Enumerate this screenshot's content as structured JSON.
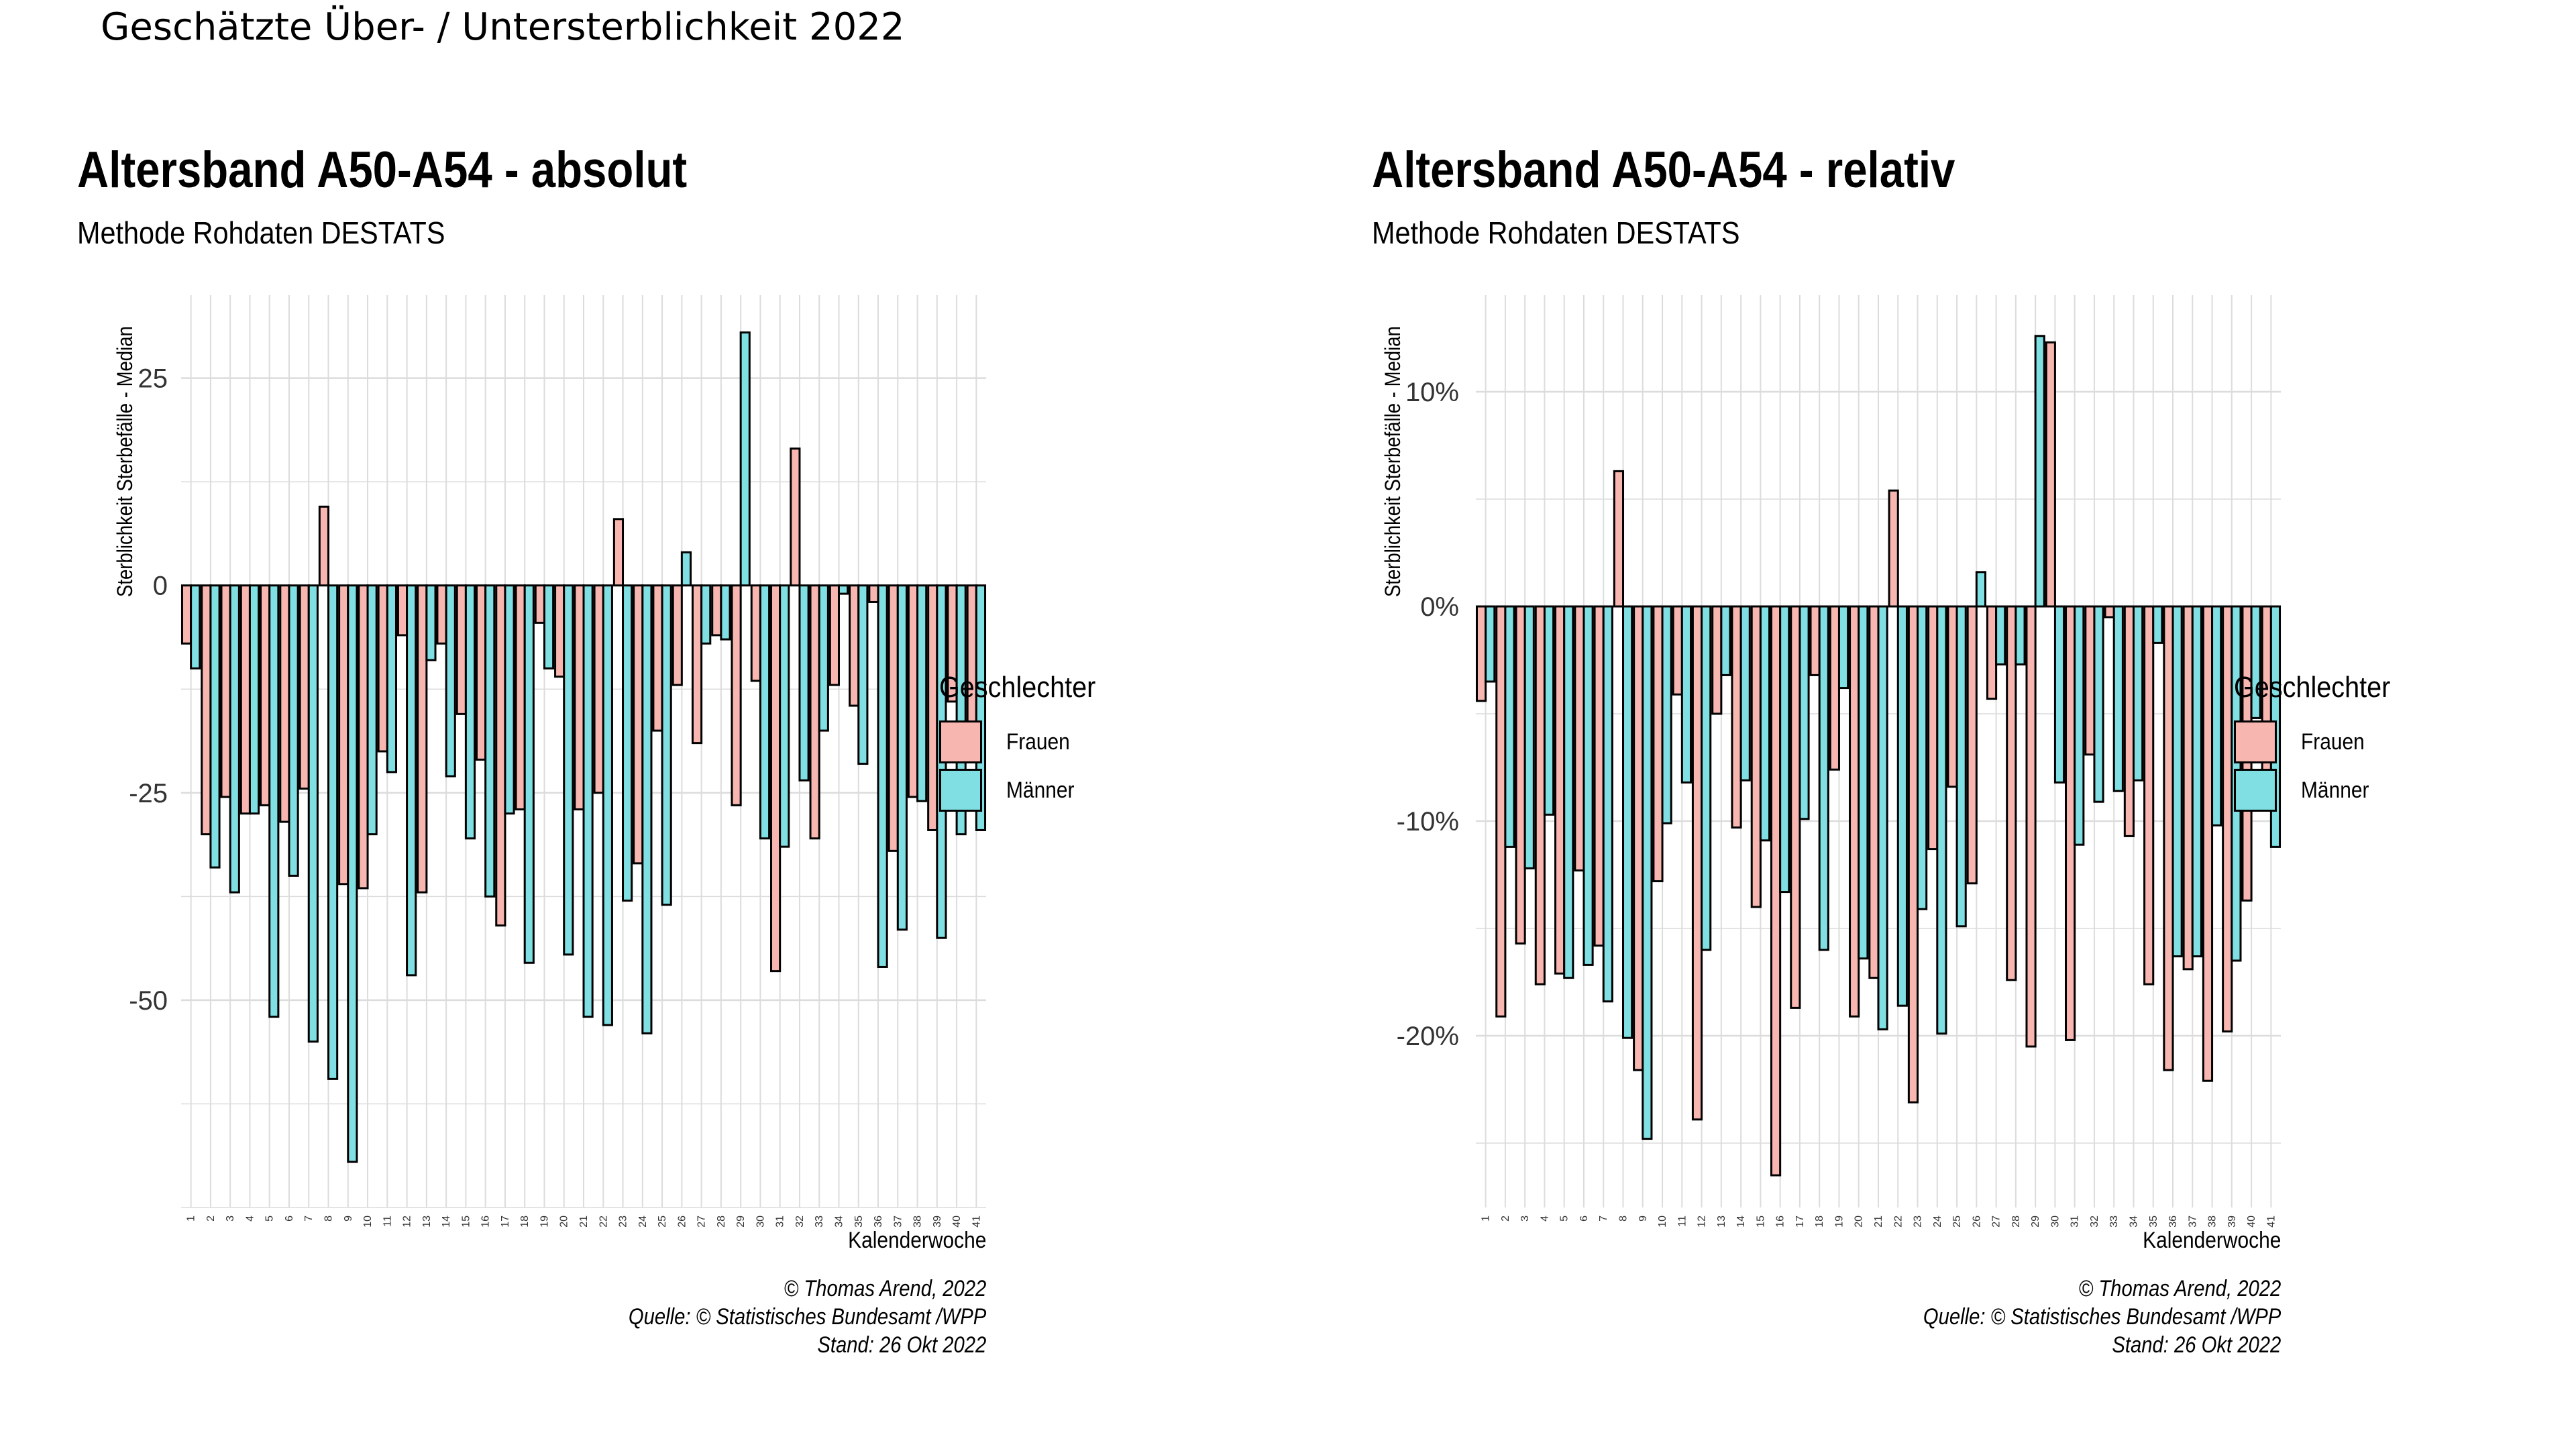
{
  "page_title": "Geschätzte Über- / Untersterblichkeit 2022",
  "colors": {
    "frauen": "#f8b6b0",
    "maenner": "#7fdfe2",
    "grid": "#dcdcdc",
    "outline": "#000000"
  },
  "chart_data": [
    {
      "type": "bar",
      "title": "Altersband A50-A54 - absolut",
      "subtitle": "Methode Rohdaten DESTATS",
      "xlabel": "Kalenderwoche",
      "ylabel": "Sterblichkeit Sterbefälle - Median",
      "ylim": [
        -75,
        35
      ],
      "yticks": [
        -50,
        -25,
        0,
        25
      ],
      "ytick_labels": [
        "-50",
        "-25",
        "0",
        "25"
      ],
      "grid": true,
      "legend": {
        "title": "Geschlechter",
        "position": "right"
      },
      "categories": [
        "1",
        "2",
        "3",
        "4",
        "5",
        "6",
        "7",
        "8",
        "9",
        "10",
        "11",
        "12",
        "13",
        "14",
        "15",
        "16",
        "17",
        "18",
        "19",
        "20",
        "21",
        "22",
        "23",
        "24",
        "25",
        "26",
        "27",
        "28",
        "29",
        "30",
        "31",
        "32",
        "33",
        "34",
        "35",
        "36",
        "37",
        "38",
        "39",
        "40",
        "41"
      ],
      "series": [
        {
          "name": "Frauen",
          "values": [
            -7,
            -30,
            -25.5,
            -27.5,
            -26.5,
            -28.5,
            -24.5,
            9.5,
            -36,
            -36.5,
            -20,
            -6,
            -37,
            -7,
            -15.5,
            -21,
            -41,
            -27,
            -4.5,
            -11,
            -27,
            -25,
            8,
            -33.5,
            -17.5,
            -12,
            -19,
            -6,
            -26.5,
            -11.5,
            -46.5,
            16.5,
            -30.5,
            -12,
            -14.5,
            -2,
            -32,
            -25.5,
            -29.5,
            -14,
            -20.5
          ]
        },
        {
          "name": "Männer",
          "values": [
            -10,
            -34,
            -37,
            -27.5,
            -52,
            -35,
            -55,
            -59.5,
            -69.5,
            -30,
            -22.5,
            -47,
            -9,
            -23,
            -30.5,
            -37.5,
            -27.5,
            -45.5,
            -10,
            -44.5,
            -52,
            -53,
            -38,
            -54,
            -38.5,
            4,
            -7,
            -6.5,
            30.5,
            -30.5,
            -31.5,
            -23.5,
            -17.5,
            -1,
            -21.5,
            -46,
            -41.5,
            -26,
            -42.5,
            -30,
            -29.5
          ]
        }
      ]
    },
    {
      "type": "bar",
      "title": "Altersband A50-A54 - relativ",
      "subtitle": "Methode Rohdaten DESTATS",
      "xlabel": "Kalenderwoche",
      "ylabel": "Sterblichkeit Sterbefälle - Median",
      "ylim": [
        -28,
        14.5
      ],
      "yticks": [
        -20,
        -10,
        0,
        10
      ],
      "ytick_labels": [
        "-20%",
        "-10%",
        "0%",
        "10%"
      ],
      "grid": true,
      "legend": {
        "title": "Geschlechter",
        "position": "right"
      },
      "categories": [
        "1",
        "2",
        "3",
        "4",
        "5",
        "6",
        "7",
        "8",
        "9",
        "10",
        "11",
        "12",
        "13",
        "14",
        "15",
        "16",
        "17",
        "18",
        "19",
        "20",
        "21",
        "22",
        "23",
        "24",
        "25",
        "26",
        "27",
        "28",
        "29",
        "30",
        "31",
        "32",
        "33",
        "34",
        "35",
        "36",
        "37",
        "38",
        "39",
        "40",
        "41"
      ],
      "series": [
        {
          "name": "Frauen",
          "values": [
            -4.4,
            -19.1,
            -15.7,
            -17.6,
            -17.1,
            -12.3,
            -15.8,
            6.3,
            -21.6,
            -12.8,
            -4.1,
            -23.9,
            -5,
            -10.3,
            -14,
            -26.5,
            -18.7,
            -3.2,
            -7.6,
            -19.1,
            -17.3,
            5.4,
            -23.1,
            -11.3,
            -8.4,
            -12.9,
            -4.3,
            -17.4,
            -20.5,
            12.3,
            -20.2,
            -6.9,
            -0.5,
            -10.7,
            -17.6,
            -21.6,
            -16.9,
            -22.1,
            -19.8,
            -13.7,
            -8.6
          ]
        },
        {
          "name": "Männer",
          "values": [
            -3.5,
            -11.2,
            -12.2,
            -9.7,
            -17.3,
            -16.7,
            -18.4,
            -20.1,
            -24.8,
            -10.1,
            -8.2,
            -16,
            -3.2,
            -8.1,
            -10.9,
            -13.3,
            -9.9,
            -16,
            -3.8,
            -16.4,
            -19.7,
            -18.6,
            -14.1,
            -19.9,
            -14.9,
            1.6,
            -2.7,
            -2.7,
            12.6,
            -8.2,
            -11.1,
            -9.1,
            -8.6,
            -8.1,
            -1.7,
            -16.3,
            -16.3,
            -10.2,
            -16.5,
            -5.2,
            -11.2
          ]
        }
      ]
    }
  ],
  "captions": [
    [
      "© Thomas Arend, 2022",
      "Quelle: © Statistisches Bundesamt /WPP",
      "Stand: 26 Okt 2022"
    ],
    [
      "© Thomas Arend, 2022",
      "Quelle: © Statistisches Bundesamt /WPP",
      "Stand: 26 Okt 2022"
    ]
  ]
}
